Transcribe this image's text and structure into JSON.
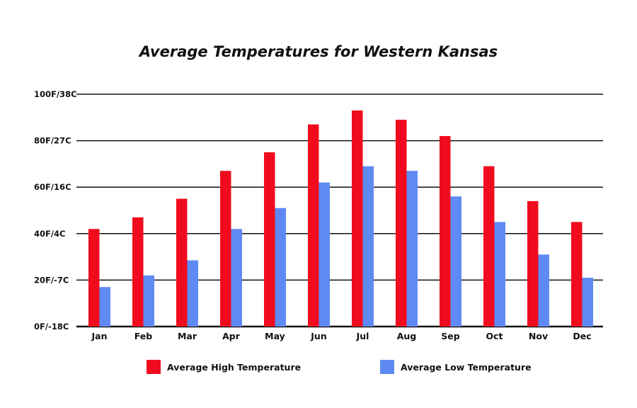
{
  "chart_data": {
    "type": "bar",
    "title": "Average Temperatures for Western Kansas",
    "categories": [
      "Jan",
      "Feb",
      "Mar",
      "Apr",
      "May",
      "Jun",
      "Jul",
      "Aug",
      "Sep",
      "Oct",
      "Nov",
      "Dec"
    ],
    "series": [
      {
        "name": "Average High Temperature",
        "color": "#f00c1e",
        "values": [
          42,
          47,
          55,
          67,
          75,
          87,
          93,
          89,
          82,
          69,
          54,
          45
        ]
      },
      {
        "name": "Average Low Temperature",
        "color": "#5f8af3",
        "values": [
          17,
          22,
          28.5,
          42,
          51,
          62,
          69,
          67,
          56,
          45,
          31,
          21
        ]
      }
    ],
    "ylim": [
      0,
      100
    ],
    "yticks": [
      0,
      20,
      40,
      60,
      80,
      100
    ],
    "ytick_labels": [
      "0F/-18C",
      "20F/-7C",
      "40F/4C",
      "60F/16C",
      "80F/27C",
      "100F/38C"
    ],
    "grid": true,
    "legend": "bottom"
  }
}
